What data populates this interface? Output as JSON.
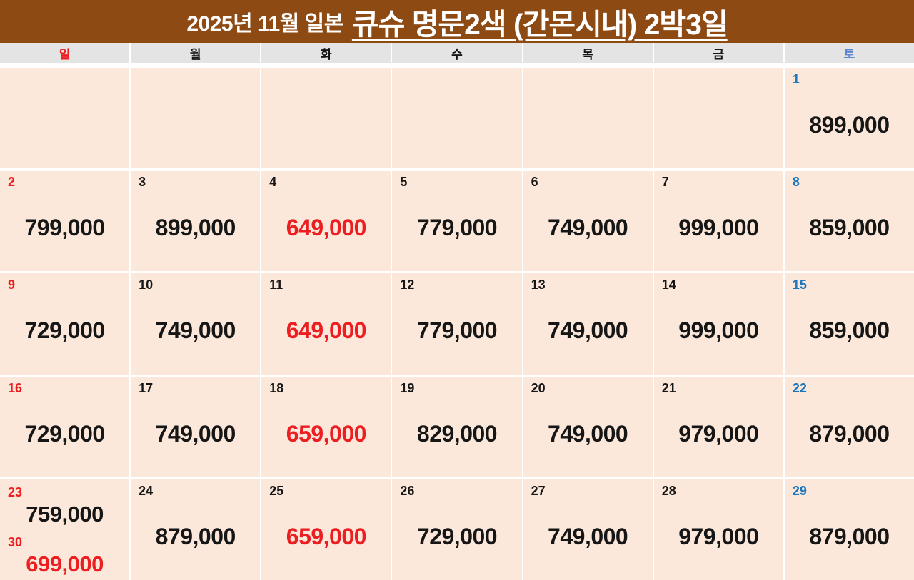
{
  "title": {
    "prefix": "2025년 11월 일본",
    "main": "큐슈 명문2색 (간몬시내) 2박3일"
  },
  "colors": {
    "header_background": "#8D4A12",
    "title_text": "#FFFFFF",
    "weekday_row_background": "#E4E4E4",
    "cell_background": "#FBE8DA",
    "gap_white": "#FFFFFF",
    "red": "#EC1E21",
    "blue_date": "#1B75BC",
    "saturday_header_blue": "#5C86CD",
    "black_text": "#161616"
  },
  "calendar": {
    "weekdays": [
      {
        "label": "일",
        "color": "red"
      },
      {
        "label": "월",
        "color": "black"
      },
      {
        "label": "화",
        "color": "black"
      },
      {
        "label": "수",
        "color": "black"
      },
      {
        "label": "목",
        "color": "black"
      },
      {
        "label": "금",
        "color": "black"
      },
      {
        "label": "토",
        "color": "satblue"
      }
    ],
    "weeks": [
      [
        {},
        {},
        {},
        {},
        {},
        {},
        {
          "date": "1",
          "date_color": "blue",
          "price": "899,000",
          "price_color": "black"
        }
      ],
      [
        {
          "date": "2",
          "date_color": "red",
          "price": "799,000",
          "price_color": "black"
        },
        {
          "date": "3",
          "date_color": "black",
          "price": "899,000",
          "price_color": "black"
        },
        {
          "date": "4",
          "date_color": "black",
          "price": "649,000",
          "price_color": "red"
        },
        {
          "date": "5",
          "date_color": "black",
          "price": "779,000",
          "price_color": "black"
        },
        {
          "date": "6",
          "date_color": "black",
          "price": "749,000",
          "price_color": "black"
        },
        {
          "date": "7",
          "date_color": "black",
          "price": "999,000",
          "price_color": "black"
        },
        {
          "date": "8",
          "date_color": "blue",
          "price": "859,000",
          "price_color": "black"
        }
      ],
      [
        {
          "date": "9",
          "date_color": "red",
          "price": "729,000",
          "price_color": "black"
        },
        {
          "date": "10",
          "date_color": "black",
          "price": "749,000",
          "price_color": "black"
        },
        {
          "date": "11",
          "date_color": "black",
          "price": "649,000",
          "price_color": "red"
        },
        {
          "date": "12",
          "date_color": "black",
          "price": "779,000",
          "price_color": "black"
        },
        {
          "date": "13",
          "date_color": "black",
          "price": "749,000",
          "price_color": "black"
        },
        {
          "date": "14",
          "date_color": "black",
          "price": "999,000",
          "price_color": "black"
        },
        {
          "date": "15",
          "date_color": "blue",
          "price": "859,000",
          "price_color": "black"
        }
      ],
      [
        {
          "date": "16",
          "date_color": "red",
          "price": "729,000",
          "price_color": "black"
        },
        {
          "date": "17",
          "date_color": "black",
          "price": "749,000",
          "price_color": "black"
        },
        {
          "date": "18",
          "date_color": "black",
          "price": "659,000",
          "price_color": "red"
        },
        {
          "date": "19",
          "date_color": "black",
          "price": "829,000",
          "price_color": "black"
        },
        {
          "date": "20",
          "date_color": "black",
          "price": "749,000",
          "price_color": "black"
        },
        {
          "date": "21",
          "date_color": "black",
          "price": "979,000",
          "price_color": "black"
        },
        {
          "date": "22",
          "date_color": "blue",
          "price": "879,000",
          "price_color": "black"
        }
      ],
      [
        {
          "entries": [
            {
              "date": "23",
              "date_color": "red",
              "price": "759,000",
              "price_color": "black"
            },
            {
              "date": "30",
              "date_color": "red",
              "price": "699,000",
              "price_color": "red"
            }
          ]
        },
        {
          "date": "24",
          "date_color": "black",
          "price": "879,000",
          "price_color": "black"
        },
        {
          "date": "25",
          "date_color": "black",
          "price": "659,000",
          "price_color": "red"
        },
        {
          "date": "26",
          "date_color": "black",
          "price": "729,000",
          "price_color": "black"
        },
        {
          "date": "27",
          "date_color": "black",
          "price": "749,000",
          "price_color": "black"
        },
        {
          "date": "28",
          "date_color": "black",
          "price": "979,000",
          "price_color": "black"
        },
        {
          "date": "29",
          "date_color": "blue",
          "price": "879,000",
          "price_color": "black"
        }
      ]
    ]
  }
}
